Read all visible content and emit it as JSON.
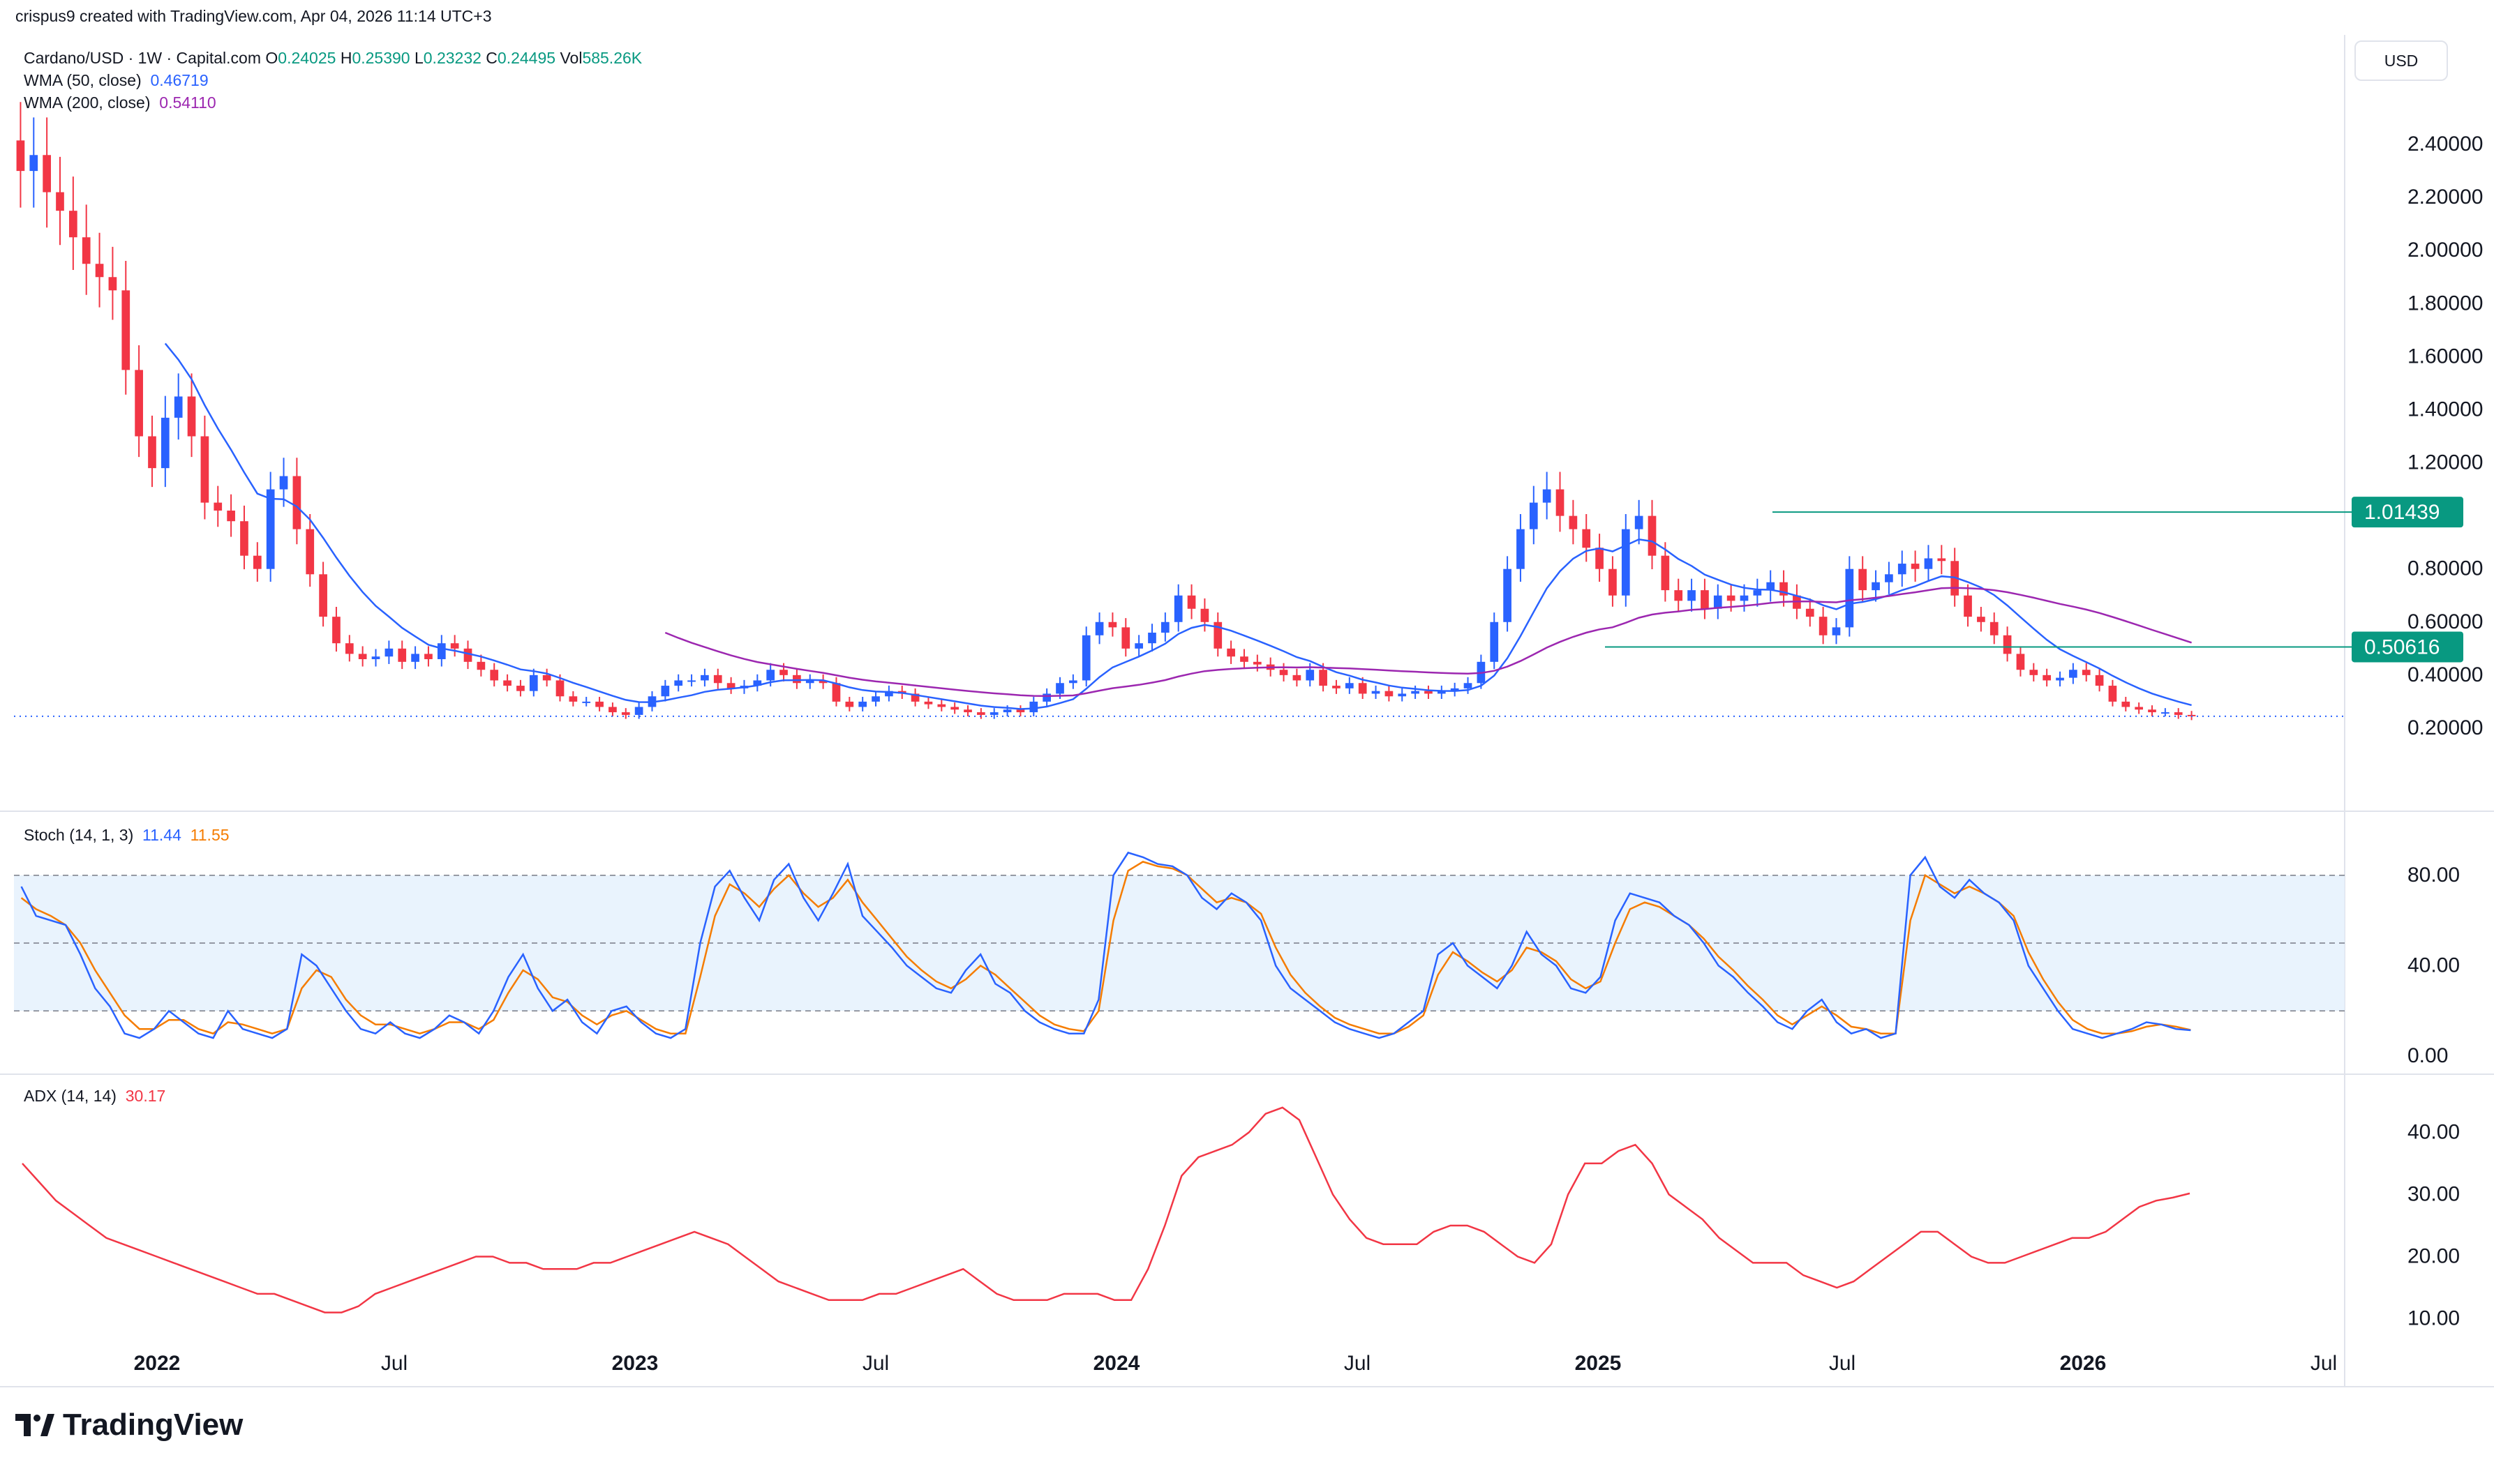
{
  "watermark": "crispus9 created with TradingView.com, Apr 04, 2026 11:14 UTC+3",
  "header": {
    "symbol": "Cardano/USD · 1W · Capital.com",
    "ohlc": [
      {
        "label": "O",
        "value": "0.24025"
      },
      {
        "label": "H",
        "value": "0.25390"
      },
      {
        "label": "L",
        "value": "0.23232"
      },
      {
        "label": "C",
        "value": "0.24495"
      },
      {
        "label": "Vol",
        "value": "585.26K"
      }
    ],
    "wma50": {
      "label": "WMA (50, close)",
      "value": "0.46719"
    },
    "wma200": {
      "label": "WMA (200, close)",
      "value": "0.54110"
    }
  },
  "currency_button": "USD",
  "stoch": {
    "label": "Stoch (14, 1, 3)",
    "k": "11.44",
    "d": "11.55"
  },
  "adx": {
    "label": "ADX (14, 14)",
    "value": "30.17"
  },
  "brand": "TradingView",
  "colors": {
    "up": "#2962ff",
    "down": "#f23645",
    "wma50": "#2962ff",
    "wma200": "#9c27b0",
    "stochK": "#2962ff",
    "stochD": "#f57c00",
    "adx": "#f23645",
    "hline": "#089981"
  },
  "chart_data": [
    {
      "type": "candlestick",
      "x_ticks": [
        "2022",
        "Jul",
        "2023",
        "Jul",
        "2024",
        "Jul",
        "2025",
        "Jul",
        "2026",
        "Jul"
      ],
      "y_ticks": [
        "2.40000",
        "2.20000",
        "2.00000",
        "1.80000",
        "1.60000",
        "1.40000",
        "1.20000",
        "0.80000",
        "0.60000",
        "0.40000",
        "0.20000"
      ],
      "ylim": [
        0.0,
        2.55
      ],
      "price_labels": [
        {
          "name": "resistance",
          "value": 1.01439,
          "text": "1.01439"
        },
        {
          "name": "support",
          "value": 0.50616,
          "text": "0.50616"
        }
      ],
      "last_price": 0.24495,
      "weekly_closes": [
        2.3,
        2.36,
        2.22,
        2.15,
        2.05,
        1.95,
        1.9,
        1.85,
        1.55,
        1.3,
        1.18,
        1.37,
        1.45,
        1.3,
        1.05,
        1.02,
        0.98,
        0.85,
        0.8,
        1.1,
        1.15,
        0.95,
        0.78,
        0.62,
        0.52,
        0.48,
        0.46,
        0.47,
        0.5,
        0.45,
        0.48,
        0.46,
        0.52,
        0.5,
        0.45,
        0.42,
        0.38,
        0.36,
        0.34,
        0.4,
        0.38,
        0.32,
        0.3,
        0.3,
        0.28,
        0.26,
        0.25,
        0.28,
        0.32,
        0.36,
        0.38,
        0.38,
        0.4,
        0.37,
        0.35,
        0.36,
        0.38,
        0.42,
        0.4,
        0.37,
        0.38,
        0.37,
        0.3,
        0.28,
        0.3,
        0.32,
        0.34,
        0.33,
        0.3,
        0.29,
        0.28,
        0.27,
        0.26,
        0.25,
        0.26,
        0.27,
        0.26,
        0.3,
        0.33,
        0.37,
        0.38,
        0.55,
        0.6,
        0.58,
        0.5,
        0.52,
        0.56,
        0.6,
        0.7,
        0.65,
        0.6,
        0.5,
        0.47,
        0.45,
        0.44,
        0.42,
        0.4,
        0.38,
        0.42,
        0.36,
        0.35,
        0.37,
        0.33,
        0.34,
        0.32,
        0.33,
        0.34,
        0.33,
        0.34,
        0.35,
        0.37,
        0.45,
        0.6,
        0.8,
        0.95,
        1.05,
        1.1,
        1.0,
        0.95,
        0.88,
        0.8,
        0.7,
        0.95,
        1.0,
        0.85,
        0.72,
        0.68,
        0.72,
        0.65,
        0.7,
        0.68,
        0.7,
        0.72,
        0.75,
        0.7,
        0.65,
        0.62,
        0.55,
        0.58,
        0.8,
        0.72,
        0.75,
        0.78,
        0.82,
        0.8,
        0.84,
        0.83,
        0.7,
        0.62,
        0.6,
        0.55,
        0.48,
        0.42,
        0.4,
        0.38,
        0.39,
        0.42,
        0.4,
        0.36,
        0.3,
        0.28,
        0.27,
        0.26,
        0.26,
        0.25,
        0.245
      ]
    },
    {
      "type": "line",
      "name": "Stoch (14, 1, 3)",
      "y_ticks": [
        "80.00",
        "40.00",
        "0.00"
      ],
      "ylim": [
        -8,
        100
      ],
      "band": [
        20,
        80
      ],
      "series": [
        {
          "name": "11.44",
          "values": [
            75,
            62,
            60,
            58,
            45,
            30,
            22,
            10,
            8,
            12,
            20,
            15,
            10,
            8,
            20,
            12,
            10,
            8,
            12,
            45,
            40,
            30,
            20,
            12,
            10,
            15,
            10,
            8,
            12,
            18,
            15,
            10,
            20,
            35,
            45,
            30,
            20,
            25,
            15,
            10,
            20,
            22,
            15,
            10,
            8,
            12,
            50,
            75,
            82,
            70,
            60,
            78,
            85,
            70,
            60,
            72,
            85,
            62,
            55,
            48,
            40,
            35,
            30,
            28,
            38,
            45,
            32,
            28,
            20,
            15,
            12,
            10,
            10,
            25,
            80,
            90,
            88,
            85,
            84,
            80,
            70,
            65,
            72,
            68,
            60,
            40,
            30,
            25,
            20,
            15,
            12,
            10,
            8,
            10,
            15,
            20,
            45,
            50,
            40,
            35,
            30,
            40,
            55,
            45,
            40,
            30,
            28,
            35,
            60,
            72,
            70,
            68,
            62,
            58,
            50,
            40,
            35,
            28,
            22,
            15,
            12,
            20,
            25,
            15,
            10,
            12,
            8,
            10,
            80,
            88,
            75,
            70,
            78,
            72,
            68,
            60,
            40,
            30,
            20,
            12,
            10,
            8,
            10,
            12,
            15,
            14,
            12,
            11.44
          ]
        },
        {
          "name": "11.55",
          "values": [
            70,
            65,
            62,
            58,
            50,
            38,
            28,
            18,
            12,
            12,
            16,
            16,
            12,
            10,
            15,
            14,
            12,
            10,
            12,
            30,
            38,
            35,
            25,
            18,
            14,
            14,
            12,
            10,
            12,
            15,
            15,
            12,
            16,
            28,
            38,
            34,
            26,
            24,
            18,
            14,
            18,
            20,
            16,
            12,
            10,
            10,
            35,
            62,
            76,
            72,
            66,
            74,
            80,
            72,
            66,
            70,
            78,
            68,
            60,
            52,
            44,
            38,
            33,
            30,
            34,
            40,
            36,
            30,
            24,
            18,
            14,
            12,
            11,
            20,
            60,
            82,
            86,
            84,
            83,
            80,
            74,
            68,
            70,
            68,
            63,
            48,
            36,
            28,
            22,
            17,
            14,
            12,
            10,
            10,
            13,
            18,
            36,
            46,
            42,
            37,
            33,
            38,
            48,
            46,
            42,
            34,
            30,
            33,
            50,
            65,
            68,
            66,
            62,
            58,
            52,
            44,
            38,
            31,
            25,
            18,
            14,
            18,
            22,
            18,
            13,
            12,
            10,
            10,
            60,
            80,
            76,
            72,
            75,
            72,
            68,
            62,
            46,
            34,
            24,
            16,
            12,
            10,
            10,
            11,
            13,
            14,
            13,
            11.55
          ]
        }
      ]
    },
    {
      "type": "line",
      "name": "ADX (14, 14)",
      "y_ticks": [
        "40.00",
        "30.00",
        "20.00",
        "10.00"
      ],
      "ylim": [
        5,
        46
      ],
      "series": [
        {
          "name": "30.17",
          "values": [
            35,
            32,
            29,
            27,
            25,
            23,
            22,
            21,
            20,
            19,
            18,
            17,
            16,
            15,
            14,
            14,
            13,
            12,
            11,
            11,
            12,
            14,
            15,
            16,
            17,
            18,
            19,
            20,
            20,
            19,
            19,
            18,
            18,
            18,
            19,
            19,
            20,
            21,
            22,
            23,
            24,
            23,
            22,
            20,
            18,
            16,
            15,
            14,
            13,
            13,
            13,
            14,
            14,
            15,
            16,
            17,
            18,
            16,
            14,
            13,
            13,
            13,
            14,
            14,
            14,
            13,
            13,
            18,
            25,
            33,
            36,
            37,
            38,
            40,
            43,
            44,
            42,
            36,
            30,
            26,
            23,
            22,
            22,
            22,
            24,
            25,
            25,
            24,
            22,
            20,
            19,
            22,
            30,
            35,
            35,
            37,
            38,
            35,
            30,
            28,
            26,
            23,
            21,
            19,
            19,
            19,
            17,
            16,
            15,
            16,
            18,
            20,
            22,
            24,
            24,
            22,
            20,
            19,
            19,
            20,
            21,
            22,
            23,
            23,
            24,
            26,
            28,
            29,
            29.5,
            30.17
          ]
        }
      ]
    }
  ]
}
